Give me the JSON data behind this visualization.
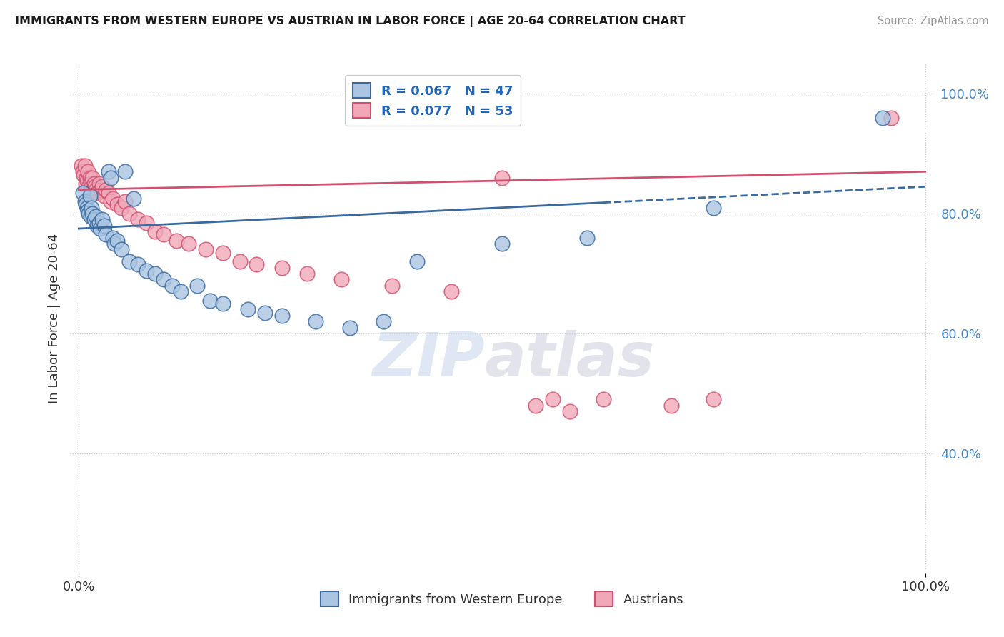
{
  "title": "IMMIGRANTS FROM WESTERN EUROPE VS AUSTRIAN IN LABOR FORCE | AGE 20-64 CORRELATION CHART",
  "source": "Source: ZipAtlas.com",
  "ylabel": "In Labor Force | Age 20-64",
  "blue_R": 0.067,
  "blue_N": 47,
  "pink_R": 0.077,
  "pink_N": 53,
  "blue_color": "#aac5e2",
  "pink_color": "#f0a8b8",
  "blue_line_color": "#3a6aa0",
  "pink_line_color": "#d05070",
  "legend_blue_label": "R = 0.067   N = 47",
  "legend_pink_label": "R = 0.077   N = 53",
  "bottom_legend_blue": "Immigrants from Western Europe",
  "bottom_legend_pink": "Austrians",
  "watermark_zip": "ZIP",
  "watermark_atlas": "atlas",
  "background_color": "#ffffff",
  "grid_color": "#cccccc",
  "blue_scatter_x": [
    0.005,
    0.007,
    0.008,
    0.01,
    0.011,
    0.012,
    0.013,
    0.014,
    0.015,
    0.016,
    0.018,
    0.02,
    0.022,
    0.024,
    0.025,
    0.028,
    0.03,
    0.032,
    0.035,
    0.038,
    0.04,
    0.042,
    0.045,
    0.05,
    0.055,
    0.06,
    0.065,
    0.07,
    0.08,
    0.09,
    0.1,
    0.11,
    0.12,
    0.14,
    0.155,
    0.17,
    0.2,
    0.22,
    0.24,
    0.28,
    0.32,
    0.36,
    0.4,
    0.5,
    0.6,
    0.75,
    0.95
  ],
  "blue_scatter_y": [
    0.835,
    0.82,
    0.815,
    0.81,
    0.805,
    0.8,
    0.83,
    0.795,
    0.81,
    0.8,
    0.79,
    0.795,
    0.78,
    0.785,
    0.775,
    0.79,
    0.78,
    0.765,
    0.87,
    0.86,
    0.76,
    0.75,
    0.755,
    0.74,
    0.87,
    0.72,
    0.825,
    0.715,
    0.705,
    0.7,
    0.69,
    0.68,
    0.67,
    0.68,
    0.655,
    0.65,
    0.64,
    0.635,
    0.63,
    0.62,
    0.61,
    0.62,
    0.72,
    0.75,
    0.76,
    0.81,
    0.96
  ],
  "pink_scatter_x": [
    0.003,
    0.005,
    0.006,
    0.007,
    0.008,
    0.009,
    0.01,
    0.011,
    0.012,
    0.013,
    0.014,
    0.015,
    0.016,
    0.017,
    0.018,
    0.019,
    0.02,
    0.022,
    0.024,
    0.026,
    0.028,
    0.03,
    0.032,
    0.035,
    0.038,
    0.04,
    0.045,
    0.05,
    0.055,
    0.06,
    0.07,
    0.08,
    0.09,
    0.1,
    0.115,
    0.13,
    0.15,
    0.17,
    0.19,
    0.21,
    0.24,
    0.27,
    0.31,
    0.37,
    0.44,
    0.5,
    0.54,
    0.56,
    0.58,
    0.62,
    0.7,
    0.75,
    0.96
  ],
  "pink_scatter_y": [
    0.88,
    0.87,
    0.865,
    0.88,
    0.85,
    0.86,
    0.855,
    0.87,
    0.845,
    0.86,
    0.85,
    0.845,
    0.86,
    0.84,
    0.85,
    0.845,
    0.84,
    0.835,
    0.85,
    0.84,
    0.845,
    0.83,
    0.84,
    0.835,
    0.82,
    0.825,
    0.815,
    0.81,
    0.82,
    0.8,
    0.79,
    0.785,
    0.77,
    0.765,
    0.755,
    0.75,
    0.74,
    0.735,
    0.72,
    0.715,
    0.71,
    0.7,
    0.69,
    0.68,
    0.67,
    0.86,
    0.48,
    0.49,
    0.47,
    0.49,
    0.48,
    0.49,
    0.96
  ]
}
